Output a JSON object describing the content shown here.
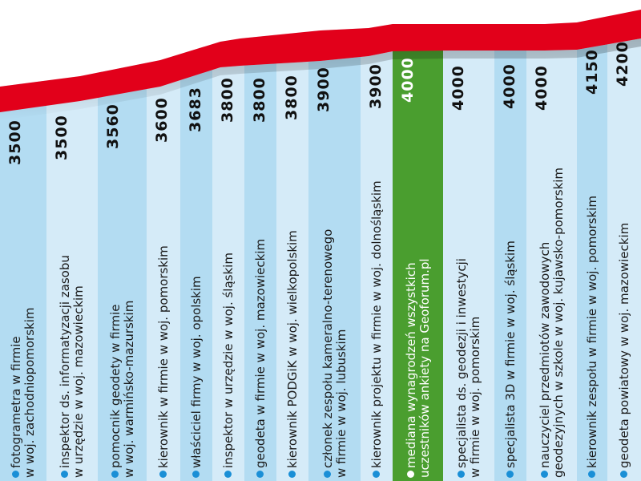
{
  "chart_data": {
    "type": "bar",
    "title": "",
    "xlabel": "",
    "ylabel": "",
    "orientation": "vertical text, horizontal columns with red trend line",
    "categories": [
      "fotogrametra w firmie w woj. zachodniopomorskim",
      "inspektor ds. informatyzacji zasobu w urzędzie w woj. mazowieckim",
      "pomocnik geodety w firmie w woj. warmińsko-mazurskim",
      "kierownik w firmie w woj. pomorskim",
      "właściciel firmy w woj. opolskim",
      "inspektor w urzędzie w woj. śląskim",
      "geodeta w firmie w woj. mazowieckim",
      "kierownik PODGiK w woj. wielkopolskim",
      "członek zespołu kameralno-terenowego w firmie w woj. lubuskim",
      "kierownik projektu w firmie w woj. dolnośląskim",
      "mediana wynagrodzeń wszystkich uczestników ankiety na Geoforum.pl",
      "specjalista ds. geodezji i inwestycji w firmie w woj. pomorskim",
      "specjalista 3D w firmie w woj. śląskim",
      "nauczyciel przedmiotów zawodowych geodezyjnych w szkole w woj. kujawsko-pomorskim",
      "kierownik zespołu w firmie w woj. pomorskim",
      "geodeta powiatowy w woj. mazowieckim"
    ],
    "values": [
      3500,
      3500,
      3560,
      3600,
      3683,
      3800,
      3800,
      3800,
      3900,
      3900,
      4000,
      4000,
      4000,
      4000,
      4150,
      4200
    ],
    "highlight_index": 10,
    "colors": {
      "bar_dark": "#b3dcf2",
      "bar_light": "#d5ebf8",
      "highlight": "#4a9e2f",
      "trend_line": "#e2001a",
      "bullet": "#1a8fd6"
    }
  },
  "columns": [
    {
      "l1": "fotogrametra w firmie",
      "l2": "w woj. zachodniopomorskim",
      "value": "3500"
    },
    {
      "l1": "inspektor ds. informatyzacji zasobu",
      "l2": "w urzędzie w woj. mazowieckim",
      "value": "3500"
    },
    {
      "l1": "pomocnik geodety w firmie",
      "l2": "w woj. warmińsko-mazurskim",
      "value": "3560"
    },
    {
      "l1": "kierownik w firmie w woj. pomorskim",
      "l2": "",
      "value": "3600"
    },
    {
      "l1": "właściciel firmy w woj. opolskim",
      "l2": "",
      "value": "3683"
    },
    {
      "l1": "inspektor w urzędzie w woj. śląskim",
      "l2": "",
      "value": "3800"
    },
    {
      "l1": "geodeta w firmie w woj. mazowieckim",
      "l2": "",
      "value": "3800"
    },
    {
      "l1": "kierownik PODGiK w woj. wielkopolskim",
      "l2": "",
      "value": "3800"
    },
    {
      "l1": "członek zespołu kameralno-terenowego",
      "l2": "w firmie w woj. lubuskim",
      "value": "3900"
    },
    {
      "l1": "kierownik projektu w firmie w woj. dolnośląskim",
      "l2": "",
      "value": "3900"
    },
    {
      "l1": "mediana wynagrodzeń wszystkich",
      "l2": "uczestników ankiety na Geoforum.pl",
      "value": "4000"
    },
    {
      "l1": "specjalista ds. geodezji i inwestycji",
      "l2": "w firmie w woj. pomorskim",
      "value": "4000"
    },
    {
      "l1": "specjalista 3D w firmie w woj. śląskim",
      "l2": "",
      "value": "4000"
    },
    {
      "l1": "nauczyciel przedmiotów zawodowych",
      "l2": "geodezyjnych w szkole w woj. kujawsko-pomorskim",
      "value": "4000"
    },
    {
      "l1": "kierownik zespołu w firmie w woj. pomorskim",
      "l2": "",
      "value": "4150"
    },
    {
      "l1": "geodeta powiatowy w woj. mazowieckim",
      "l2": "",
      "value": "4200"
    }
  ]
}
